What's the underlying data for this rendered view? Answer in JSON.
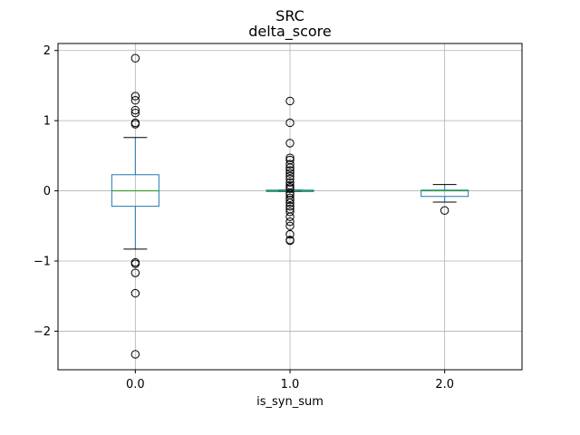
{
  "chart_data": {
    "type": "box",
    "suptitle": "SRC",
    "title": "delta_score",
    "xlabel": "is_syn_sum",
    "ylabel": "",
    "categories": [
      "0.0",
      "1.0",
      "2.0"
    ],
    "ylim": [
      -2.55,
      2.1
    ],
    "yticks": [
      -2,
      -1,
      0,
      1,
      2
    ],
    "ytick_labels": [
      "−2",
      "−1",
      "0",
      "1",
      "2"
    ],
    "grid": true,
    "colors": {
      "box": "#1f77b4",
      "median": "#2ca02c",
      "whisker": "#000000",
      "flier": "#000000",
      "grid": "#b0b0b0"
    },
    "boxes": [
      {
        "category": "0.0",
        "q1": -0.22,
        "median": 0.0,
        "q3": 0.23,
        "whisker_low": -0.83,
        "whisker_high": 0.76,
        "fliers": [
          1.89,
          1.35,
          1.29,
          1.15,
          1.11,
          0.97,
          0.95,
          -1.02,
          -1.04,
          -1.17,
          -1.46,
          -2.33
        ]
      },
      {
        "category": "1.0",
        "q1": -0.01,
        "median": 0.0,
        "q3": 0.01,
        "whisker_low": -0.01,
        "whisker_high": 0.01,
        "fliers": [
          1.28,
          0.97,
          0.68,
          0.47,
          0.44,
          0.38,
          0.33,
          0.29,
          0.25,
          0.21,
          0.17,
          0.12,
          0.08,
          0.05,
          0.03,
          -0.03,
          -0.06,
          -0.1,
          -0.13,
          -0.17,
          -0.22,
          -0.26,
          -0.3,
          -0.37,
          -0.44,
          -0.5,
          -0.62,
          -0.7,
          -0.71
        ]
      },
      {
        "category": "2.0",
        "q1": -0.08,
        "median": 0.0,
        "q3": 0.01,
        "whisker_low": -0.16,
        "whisker_high": 0.09,
        "fliers": [
          -0.28
        ]
      }
    ]
  }
}
